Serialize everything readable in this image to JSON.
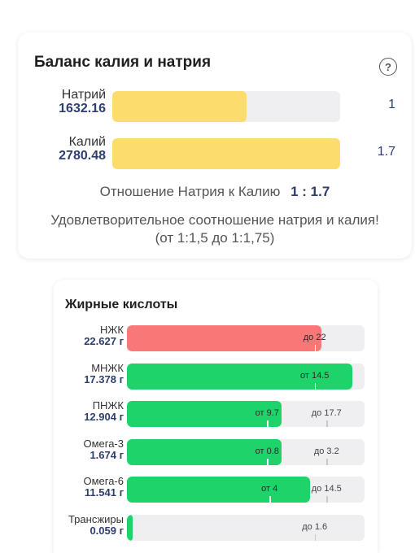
{
  "balance": {
    "title": "Баланс калия и натрия",
    "help_icon": "question-circle-icon",
    "sodium": {
      "name": "Натрий",
      "value": "1632.16",
      "ratio": "1",
      "fill": 0.59
    },
    "potassium": {
      "name": "Калий",
      "value": "2780.48",
      "ratio": "1.7",
      "fill": 1.0
    },
    "ratio_label": "Отношение Натрия к Калию",
    "ratio_value": "1 : 1.7",
    "verdict_line1": "Удовлетворительное соотношение натрия и калия!",
    "verdict_line2": "(от 1:1,5 до 1:1,75)",
    "bar_color": "#fddc6e"
  },
  "fatty_acids": {
    "title": "Жирные кислоты",
    "colors": {
      "ok": "#1ed36a",
      "over": "#f97777",
      "track": "#efeff1"
    },
    "items": [
      {
        "name": "НЖК",
        "value": "22.627 г",
        "fill": 0.82,
        "status": "over",
        "min_label": "",
        "min_pos": null,
        "max_label": "до 22",
        "max_pos": 0.79
      },
      {
        "name": "МНЖК",
        "value": "17.378 г",
        "fill": 0.95,
        "status": "ok",
        "min_label": "от 14.5",
        "min_pos": 0.79,
        "max_label": "",
        "max_pos": null
      },
      {
        "name": "ПНЖК",
        "value": "12.904 г",
        "fill": 0.65,
        "status": "ok",
        "min_label": "от 9.7",
        "min_pos": 0.59,
        "max_label": "до 17.7",
        "max_pos": 0.84
      },
      {
        "name": "Омега-3",
        "value": "1.674 г",
        "fill": 0.65,
        "status": "ok",
        "min_label": "от 0.8",
        "min_pos": 0.59,
        "max_label": "до 3.2",
        "max_pos": 0.84
      },
      {
        "name": "Омега-6",
        "value": "11.541 г",
        "fill": 0.77,
        "status": "ok",
        "min_label": "от 4",
        "min_pos": 0.6,
        "max_label": "до 14.5",
        "max_pos": 0.84
      },
      {
        "name": "Трансжиры",
        "value": "0.059 г",
        "fill": 0.025,
        "status": "ok",
        "min_label": "",
        "min_pos": null,
        "max_label": "до 1.6",
        "max_pos": 0.79
      }
    ]
  }
}
